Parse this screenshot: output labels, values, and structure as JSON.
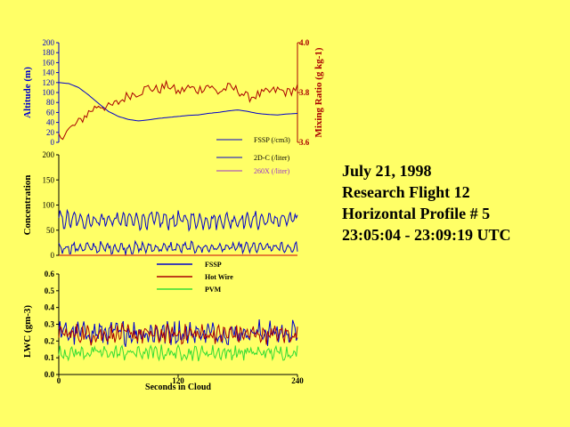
{
  "info_lines": [
    "July 21, 1998",
    "Research Flight 12",
    "Horizontal Profile # 5",
    "23:05:04 - 23:09:19 UTC"
  ],
  "colors": {
    "background": "#ffff66",
    "blue": "#0000cc",
    "red": "#aa0000",
    "green": "#33dd33",
    "magenta": "#9933cc",
    "axis": "#000000"
  },
  "chart_data": [
    {
      "type": "line",
      "panel": "altitude-mixing",
      "ylabel": "Altitude (m)",
      "y2label": "Mixing Ratio (g kg-1)",
      "ylim": [
        0,
        200
      ],
      "y2lim": [
        3.6,
        4.0
      ],
      "yticks": [
        "0",
        "20",
        "40",
        "60",
        "80",
        "100",
        "120",
        "140",
        "160",
        "180",
        "200"
      ],
      "y2ticks": [
        "3.6",
        "3.8",
        "4.0"
      ],
      "xlim": [
        0,
        240
      ],
      "series": [
        {
          "name": "",
          "axis": "left",
          "color": "#0000cc",
          "x": [
            0,
            10,
            20,
            30,
            40,
            50,
            60,
            70,
            80,
            90,
            100,
            110,
            120,
            130,
            140,
            150,
            160,
            170,
            180,
            190,
            200,
            210,
            220,
            230,
            240
          ],
          "values": [
            120,
            118,
            110,
            95,
            78,
            62,
            52,
            46,
            43,
            45,
            48,
            50,
            52,
            54,
            55,
            58,
            60,
            63,
            65,
            62,
            58,
            56,
            55,
            57,
            58
          ]
        },
        {
          "name": "",
          "axis": "right",
          "color": "#aa0000",
          "x": [
            0,
            10,
            20,
            30,
            40,
            50,
            60,
            70,
            80,
            90,
            100,
            110,
            120,
            130,
            140,
            150,
            160,
            170,
            180,
            190,
            200,
            210,
            220,
            230,
            240
          ],
          "values": [
            3.62,
            3.65,
            3.68,
            3.72,
            3.75,
            3.74,
            3.76,
            3.79,
            3.8,
            3.82,
            3.81,
            3.83,
            3.8,
            3.82,
            3.81,
            3.83,
            3.8,
            3.82,
            3.81,
            3.78,
            3.79,
            3.8,
            3.81,
            3.8,
            3.82
          ]
        }
      ]
    },
    {
      "type": "line",
      "panel": "concentration",
      "ylabel": "Concentration",
      "ylim": [
        0,
        200
      ],
      "yticks": [
        "0",
        "50",
        "100",
        "150",
        "200"
      ],
      "xlim": [
        0,
        240
      ],
      "legend": [
        "FSSP (/cm3)",
        "2D-C (/liter)",
        "260X (/liter)"
      ],
      "series": [
        {
          "name": "FSSP (/cm3)",
          "color": "#0000cc",
          "mean": 70,
          "amplitude": 12
        },
        {
          "name": "2D-C (/liter)",
          "color": "#0000cc",
          "mean": 15,
          "amplitude": 8
        },
        {
          "name": "260X (/liter)",
          "color": "#9933cc",
          "mean": 0,
          "amplitude": 0
        }
      ]
    },
    {
      "type": "line",
      "panel": "lwc",
      "ylabel": "LWC (gm-3)",
      "xlabel": "Seconds in Cloud",
      "ylim": [
        0.0,
        0.6
      ],
      "yticks": [
        "0.0",
        "0.1",
        "0.2",
        "0.3",
        "0.4",
        "0.5",
        "0.6"
      ],
      "xlim": [
        0,
        240
      ],
      "xticks": [
        "0",
        "120",
        "240"
      ],
      "legend": [
        "FSSP",
        "Hot Wire",
        "PVM"
      ],
      "series": [
        {
          "name": "FSSP",
          "color": "#0000cc",
          "mean": 0.25,
          "amplitude": 0.05
        },
        {
          "name": "Hot Wire",
          "color": "#aa0000",
          "mean": 0.24,
          "amplitude": 0.04
        },
        {
          "name": "PVM",
          "color": "#33dd33",
          "mean": 0.13,
          "amplitude": 0.03
        }
      ]
    }
  ]
}
